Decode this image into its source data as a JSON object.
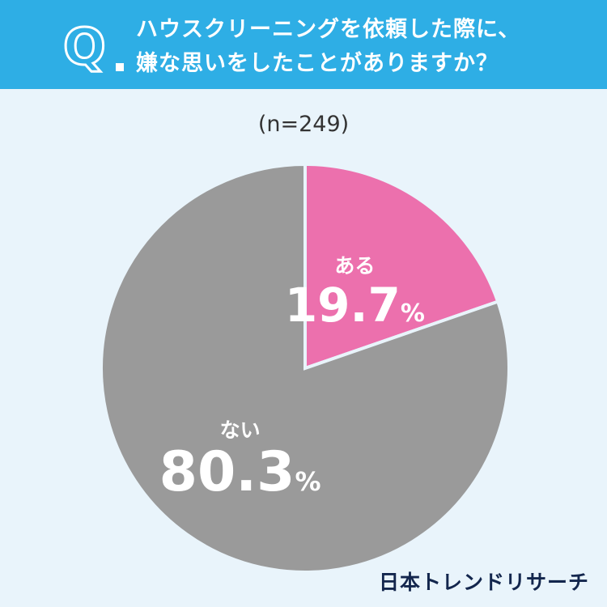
{
  "header": {
    "q_mark": "Q",
    "question_line1": "ハウスクリーニングを依頼した際に、",
    "question_line2": "嫌な思いをしたことがありますか？"
  },
  "sample_label": "(n=249)",
  "brand": "日本トレンドリサーチ",
  "colors": {
    "header": "#2eaee5",
    "background": "#e9f4fb",
    "aru": "#ec70ad",
    "nai": "#9a9a9a"
  },
  "chart_data": {
    "type": "pie",
    "slices": [
      {
        "label": "ある",
        "value": 19.7,
        "display": "19.7",
        "unit": "%",
        "color": "#ec70ad"
      },
      {
        "label": "ない",
        "value": 80.3,
        "display": "80.3",
        "unit": "%",
        "color": "#9a9a9a"
      }
    ]
  }
}
